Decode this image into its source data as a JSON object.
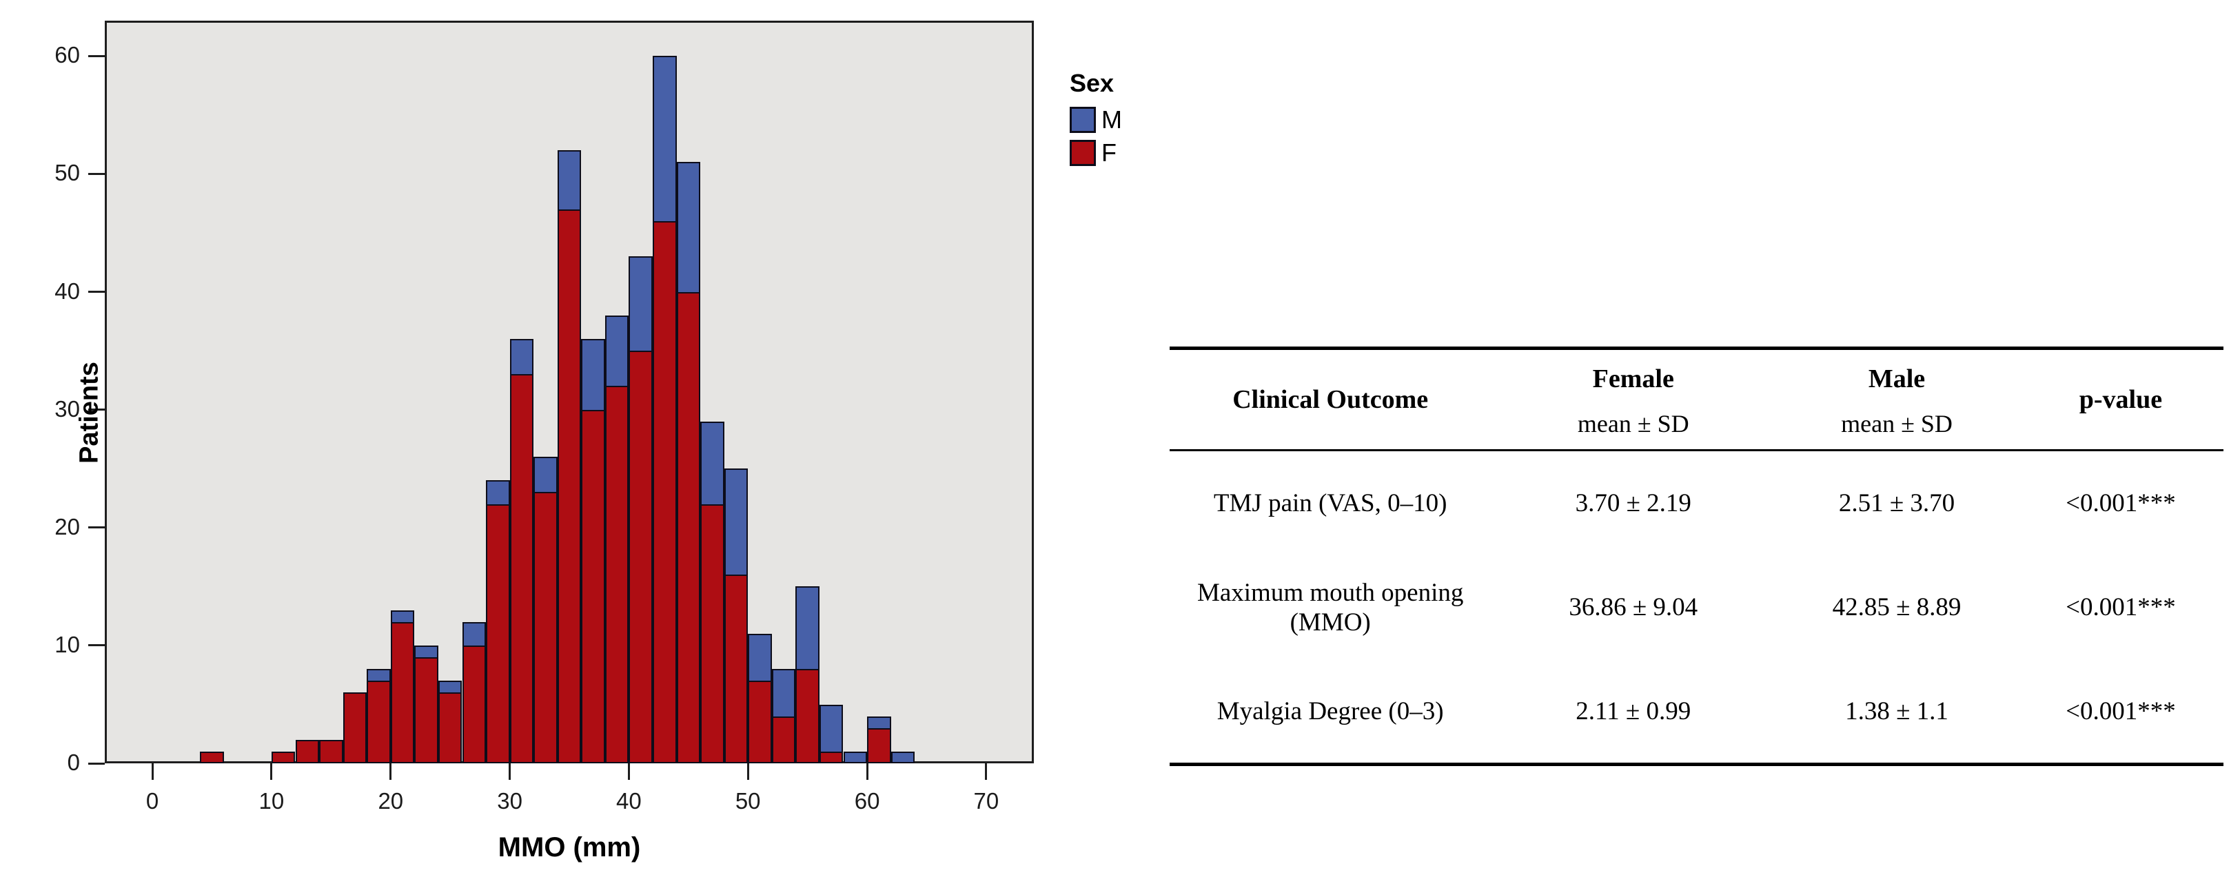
{
  "chart": {
    "legend": {
      "title": "Sex",
      "items": [
        {
          "label": "M",
          "color": "#4760a8"
        },
        {
          "label": "F",
          "color": "#ae0d13"
        }
      ]
    },
    "plot_background": "#e6e5e3",
    "bar_border_color": "#0d0d1a"
  },
  "chart_data": {
    "type": "bar",
    "subtype": "stacked-histogram",
    "title": "",
    "xlabel": "MMO (mm)",
    "ylabel": "Patients",
    "xlim": [
      -4,
      74
    ],
    "ylim": [
      0,
      63
    ],
    "x_ticks": [
      0,
      10,
      20,
      30,
      40,
      50,
      60,
      70
    ],
    "y_ticks": [
      0,
      10,
      20,
      30,
      40,
      50,
      60
    ],
    "grid": false,
    "legend_position": "top-right-outside",
    "bin_width": 2,
    "series_order_bottom_to_top": [
      "F",
      "M"
    ],
    "series": [
      {
        "name": "F",
        "color": "#ae0d13"
      },
      {
        "name": "M",
        "color": "#4760a8"
      }
    ],
    "bins": [
      {
        "x0": 4,
        "x1": 6,
        "F": 1,
        "M": 0
      },
      {
        "x0": 10,
        "x1": 12,
        "F": 1,
        "M": 0
      },
      {
        "x0": 12,
        "x1": 14,
        "F": 2,
        "M": 0
      },
      {
        "x0": 14,
        "x1": 16,
        "F": 2,
        "M": 0
      },
      {
        "x0": 16,
        "x1": 18,
        "F": 6,
        "M": 0
      },
      {
        "x0": 18,
        "x1": 20,
        "F": 7,
        "M": 1
      },
      {
        "x0": 20,
        "x1": 22,
        "F": 12,
        "M": 1
      },
      {
        "x0": 22,
        "x1": 24,
        "F": 9,
        "M": 1
      },
      {
        "x0": 24,
        "x1": 26,
        "F": 6,
        "M": 1
      },
      {
        "x0": 26,
        "x1": 28,
        "F": 10,
        "M": 2
      },
      {
        "x0": 28,
        "x1": 30,
        "F": 22,
        "M": 2
      },
      {
        "x0": 30,
        "x1": 32,
        "F": 33,
        "M": 3
      },
      {
        "x0": 32,
        "x1": 34,
        "F": 23,
        "M": 3
      },
      {
        "x0": 34,
        "x1": 36,
        "F": 47,
        "M": 5
      },
      {
        "x0": 36,
        "x1": 38,
        "F": 30,
        "M": 6
      },
      {
        "x0": 38,
        "x1": 40,
        "F": 32,
        "M": 6
      },
      {
        "x0": 40,
        "x1": 42,
        "F": 35,
        "M": 8
      },
      {
        "x0": 42,
        "x1": 44,
        "F": 46,
        "M": 14
      },
      {
        "x0": 44,
        "x1": 46,
        "F": 40,
        "M": 11
      },
      {
        "x0": 46,
        "x1": 48,
        "F": 22,
        "M": 7
      },
      {
        "x0": 48,
        "x1": 50,
        "F": 16,
        "M": 9
      },
      {
        "x0": 50,
        "x1": 52,
        "F": 7,
        "M": 4
      },
      {
        "x0": 52,
        "x1": 54,
        "F": 4,
        "M": 4
      },
      {
        "x0": 54,
        "x1": 56,
        "F": 8,
        "M": 7
      },
      {
        "x0": 56,
        "x1": 58,
        "F": 1,
        "M": 4
      },
      {
        "x0": 58,
        "x1": 60,
        "F": 0,
        "M": 1
      },
      {
        "x0": 60,
        "x1": 62,
        "F": 3,
        "M": 1
      },
      {
        "x0": 62,
        "x1": 64,
        "F": 0,
        "M": 1
      }
    ]
  },
  "table": {
    "col1_header": "Clinical Outcome",
    "female_header": "Female",
    "male_header": "Male",
    "mean_sd": "mean ± SD",
    "pvalue_header": "p-value",
    "rows": [
      {
        "outcome": "TMJ pain (VAS, 0–10)",
        "female": "3.70 ± 2.19",
        "male": "2.51 ± 3.70",
        "p": "<0.001***"
      },
      {
        "outcome": "Maximum mouth opening (MMO)",
        "female": "36.86 ± 9.04",
        "male": "42.85 ± 8.89",
        "p": "<0.001***"
      },
      {
        "outcome": "Myalgia Degree (0–3)",
        "female": "2.11 ± 0.99",
        "male": "1.38 ± 1.1",
        "p": "<0.001***"
      }
    ]
  }
}
